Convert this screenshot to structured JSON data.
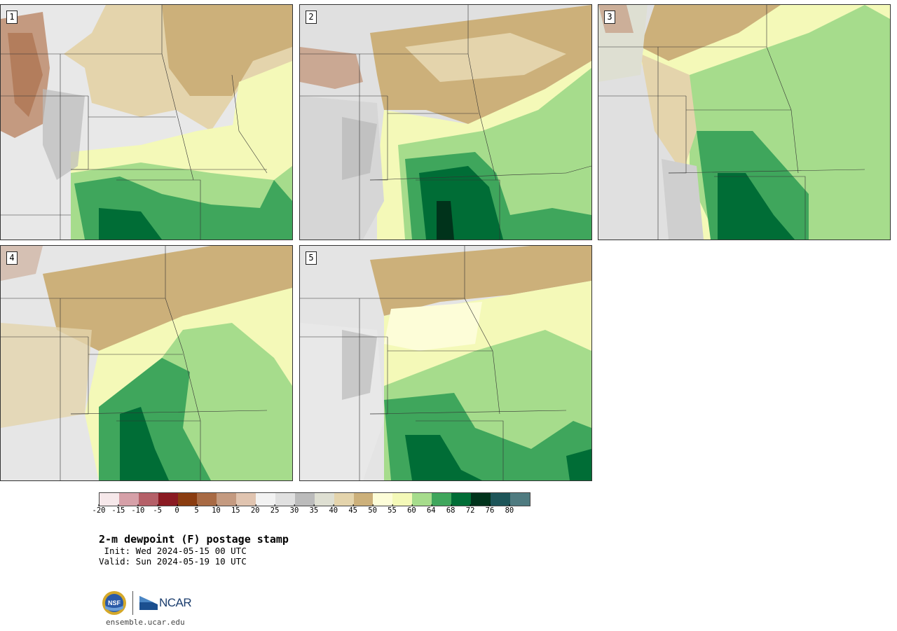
{
  "panels": [
    {
      "id": "1",
      "label": "1"
    },
    {
      "id": "2",
      "label": "2"
    },
    {
      "id": "3",
      "label": "3"
    },
    {
      "id": "4",
      "label": "4"
    },
    {
      "id": "5",
      "label": "5"
    }
  ],
  "colorbar": {
    "colors": [
      "#f6e8ea",
      "#d6a0a8",
      "#b56068",
      "#8a1a22",
      "#8a3c10",
      "#a86a44",
      "#c49a80",
      "#e0c4b0",
      "#f2f2f2",
      "#e0e0e0",
      "#bbbbbb",
      "#dedfd2",
      "#e4d4ac",
      "#ccb07a",
      "#fdfdd8",
      "#f4f9b8",
      "#a6dc8c",
      "#3fa65c",
      "#006d36",
      "#00331b",
      "#1d5559",
      "#4f7b80"
    ],
    "tick_labels": [
      "-20",
      "-15",
      "-10",
      "-5",
      "0",
      "5",
      "10",
      "15",
      "20",
      "25",
      "30",
      "35",
      "40",
      "45",
      "50",
      "55",
      "60",
      "64",
      "68",
      "72",
      "76",
      "80"
    ]
  },
  "title": "2-m dewpoint (F) postage stamp",
  "init": " Init: Wed 2024-05-15 00 UTC",
  "valid": "Valid: Sun 2024-05-19 10 UTC",
  "logos": {
    "nsf": "NSF",
    "ncar": "NCAR"
  },
  "url": "ensemble.ucar.edu"
}
